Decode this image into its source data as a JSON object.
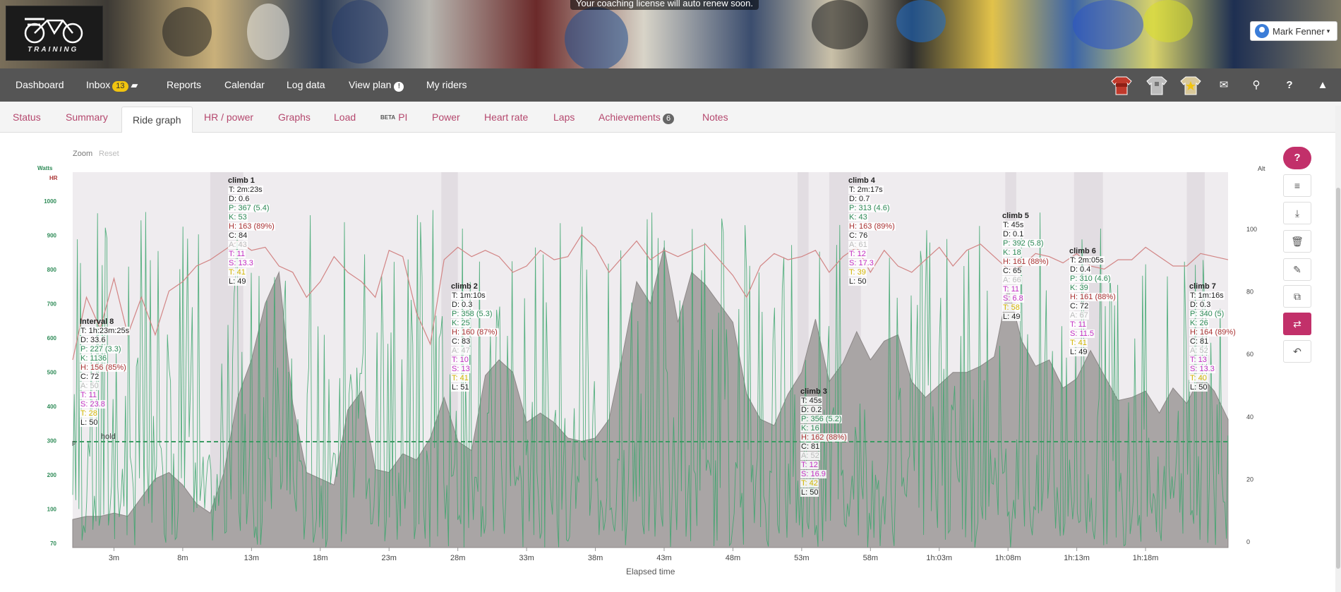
{
  "notice": "Your coaching license will auto renew soon.",
  "logo_text": "TRAINING",
  "user": {
    "name": "Mark Fenner"
  },
  "nav": {
    "dashboard": "Dashboard",
    "inbox": "Inbox",
    "inbox_count": "13",
    "reports": "Reports",
    "calendar": "Calendar",
    "log_data": "Log data",
    "view_plan": "View plan",
    "view_plan_info": "!",
    "my_riders": "My riders"
  },
  "nav_icons": [
    "jersey-red-icon",
    "jersey-grey-icon",
    "jersey-star-icon",
    "mail-icon",
    "search-icon",
    "help-icon",
    "collapse-icon"
  ],
  "tabs": {
    "status": "Status",
    "summary": "Summary",
    "ride_graph": "Ride graph",
    "hr_power": "HR / power",
    "graphs": "Graphs",
    "load": "Load",
    "pi_beta": "BETA",
    "pi": "PI",
    "power": "Power",
    "heart_rate": "Heart rate",
    "laps": "Laps",
    "achievements": "Achievements",
    "achievements_count": "6",
    "notes": "Notes"
  },
  "zoom": {
    "label": "Zoom",
    "reset": "Reset"
  },
  "side_buttons": {
    "help": "?",
    "icons": [
      "menu-icon",
      "download-icon",
      "delete-icon",
      "edit-icon",
      "copy-icon",
      "swap-icon",
      "undo-icon"
    ]
  },
  "chart_data": {
    "type": "line",
    "xlabel": "Elapsed time",
    "x_ticks": [
      "3m",
      "8m",
      "13m",
      "18m",
      "23m",
      "28m",
      "33m",
      "38m",
      "43m",
      "48m",
      "53m",
      "58m",
      "1h:03m",
      "1h:08m",
      "1h:13m",
      "1h:18m"
    ],
    "x_range_min": [
      0,
      84
    ],
    "left_axis": {
      "label_top": "Watts",
      "label_bottom": "HR",
      "ticks": [
        "1000",
        "900",
        "800",
        "700",
        "600",
        "500",
        "400",
        "300",
        "200",
        "100",
        "70"
      ]
    },
    "right_axis": {
      "label": "Alt",
      "ticks": [
        "100",
        "80",
        "60",
        "40",
        "20",
        "0"
      ]
    },
    "hold_line": {
      "label": "hold",
      "value_label": "300",
      "marker": "p"
    },
    "series": [
      {
        "name": "Alt",
        "color": "#a9a5a5",
        "x": [
          0,
          1,
          2,
          3,
          4,
          5,
          6,
          7,
          8,
          9,
          10,
          11,
          12,
          13,
          14,
          15,
          16,
          17,
          18,
          19,
          20,
          21,
          22,
          23,
          24,
          25,
          26,
          27,
          28,
          29,
          30,
          31,
          32,
          33,
          34,
          35,
          36,
          37,
          38,
          39,
          40,
          41,
          42,
          43,
          44,
          45,
          46,
          47,
          48,
          49,
          50,
          51,
          52,
          53,
          54,
          55,
          56,
          57,
          58,
          59,
          60,
          61,
          62,
          63,
          64,
          65,
          66,
          67,
          68,
          69,
          70,
          71,
          72,
          73,
          74,
          75,
          76,
          77,
          78,
          79,
          80,
          81,
          82,
          83,
          84
        ],
        "y": [
          9,
          10,
          10,
          11,
          10,
          16,
          22,
          24,
          20,
          14,
          11,
          24,
          48,
          60,
          78,
          88,
          46,
          24,
          22,
          20,
          44,
          50,
          25,
          24,
          30,
          28,
          35,
          48,
          34,
          31,
          55,
          60,
          56,
          40,
          43,
          40,
          35,
          34,
          35,
          41,
          62,
          85,
          78,
          96,
          72,
          88,
          84,
          78,
          72,
          49,
          41,
          39,
          49,
          56,
          73,
          53,
          59,
          69,
          60,
          66,
          68,
          53,
          48,
          52,
          56,
          56,
          58,
          61,
          83,
          66,
          58,
          60,
          51,
          54,
          63,
          55,
          47,
          48,
          50,
          43,
          51,
          46,
          55,
          50,
          41
        ],
        "range": [
          0,
          120
        ]
      },
      {
        "name": "HR",
        "color": "#d28585",
        "x": [
          0,
          1,
          2,
          3,
          4,
          5,
          6,
          7,
          8,
          9,
          10,
          11,
          12,
          13,
          14,
          15,
          16,
          17,
          18,
          19,
          20,
          21,
          22,
          23,
          24,
          25,
          26,
          27,
          28,
          29,
          30,
          31,
          32,
          33,
          34,
          35,
          36,
          37,
          38,
          39,
          40,
          41,
          42,
          43,
          44,
          45,
          46,
          47,
          48,
          49,
          50,
          51,
          52,
          53,
          54,
          55,
          56,
          57,
          58,
          59,
          60,
          61,
          62,
          63,
          64,
          65,
          66,
          67,
          68,
          69,
          70,
          71,
          72,
          73,
          74,
          75,
          76,
          77,
          78,
          79,
          80,
          81,
          82,
          83,
          84
        ],
        "y": [
          130,
          150,
          140,
          156,
          138,
          150,
          138,
          152,
          155,
          160,
          162,
          165,
          168,
          165,
          166,
          160,
          158,
          150,
          155,
          163,
          158,
          155,
          150,
          165,
          163,
          145,
          135,
          162,
          166,
          163,
          165,
          163,
          158,
          160,
          165,
          162,
          163,
          170,
          166,
          158,
          163,
          168,
          162,
          165,
          163,
          165,
          167,
          162,
          157,
          150,
          160,
          164,
          162,
          163,
          165,
          158,
          163,
          166,
          158,
          165,
          160,
          158,
          162,
          166,
          160,
          165,
          167,
          163,
          159,
          160,
          164,
          163,
          161,
          164,
          160,
          159,
          162,
          162,
          166,
          163,
          160,
          160,
          164,
          163,
          162
        ],
        "range": [
          70,
          190
        ]
      },
      {
        "name": "Watts",
        "color": "#3aa56b",
        "range": [
          70,
          1000
        ]
      }
    ],
    "intervals": [
      {
        "name": "Interval 8",
        "T": "T: 1h:23m:25s",
        "D": "D: 33.6",
        "P": "P: 227 (3.3)",
        "K": "K: 1136",
        "H": "H: 156 (85%)",
        "C": "C: 72",
        "A": "A: 50",
        "T2": "T: 11",
        "S": "S: 23.8",
        "T3": "T: 28",
        "L": "L: 50"
      },
      {
        "name": "climb 1",
        "T": "T: 2m:23s",
        "D": "D: 0.6",
        "P": "P: 367 (5.4)",
        "K": "K: 53",
        "H": "H: 163 (89%)",
        "C": "C: 84",
        "A": "A: 43",
        "T2": "T: 11",
        "S": "S: 13.3",
        "T3": "T: 41",
        "L": "L: 49"
      },
      {
        "name": "climb 2",
        "T": "T: 1m:10s",
        "D": "D: 0.3",
        "P": "P: 358 (5.3)",
        "K": "K: 25",
        "H": "H: 160 (87%)",
        "C": "C: 83",
        "A": "A: 47",
        "T2": "T: 10",
        "S": "S: 13",
        "T3": "T: 41",
        "L": "L: 51"
      },
      {
        "name": "climb 3",
        "T": "T: 45s",
        "D": "D: 0.2",
        "P": "P: 356 (5.2)",
        "K": "K: 16",
        "H": "H: 162 (88%)",
        "C": "C: 81",
        "A": "A: 52",
        "T2": "T: 12",
        "S": "S: 16.9",
        "T3": "T: 42",
        "L": "L: 50"
      },
      {
        "name": "climb 4",
        "T": "T: 2m:17s",
        "D": "D: 0.7",
        "P": "P: 313 (4.6)",
        "K": "K: 43",
        "H": "H: 163 (89%)",
        "C": "C: 76",
        "A": "A: 61",
        "T2": "T: 12",
        "S": "S: 17.3",
        "T3": "T: 39",
        "L": "L: 50"
      },
      {
        "name": "climb 5",
        "T": "T: 45s",
        "D": "D: 0.1",
        "P": "P: 392 (5.8)",
        "K": "K: 18",
        "H": "H: 161 (88%)",
        "C": "C: 65",
        "A": "A: 66",
        "T2": "T: 11",
        "S": "S: 6.8",
        "T3": "T: 58",
        "L": "L: 49"
      },
      {
        "name": "climb 6",
        "T": "T: 2m:05s",
        "D": "D: 0.4",
        "P": "P: 310 (4.6)",
        "K": "K: 39",
        "H": "H: 161 (88%)",
        "C": "C: 72",
        "A": "A: 67",
        "T2": "T: 11",
        "S": "S: 11.5",
        "T3": "T: 41",
        "L": "L: 49"
      },
      {
        "name": "climb 7",
        "T": "T: 1m:16s",
        "D": "D: 0.3",
        "P": "P: 340 (5)",
        "K": "K: 26",
        "H": "H: 164 (89%)",
        "C": "C: 81",
        "A": "A: 52",
        "T2": "T: 13",
        "S": "S: 13.3",
        "T3": "T: 40",
        "L": "L: 50"
      }
    ],
    "interval_minutes": [
      [
        0,
        84
      ],
      [
        10,
        12.4
      ],
      [
        26.8,
        28
      ],
      [
        52.7,
        53.5
      ],
      [
        55,
        57.3
      ],
      [
        67.8,
        68.6
      ],
      [
        72.8,
        74.9
      ],
      [
        81,
        82.3
      ]
    ],
    "colors": {
      "plot_bg": "#efecef",
      "highlight": "#e2dde2",
      "hold": "#3b9a62"
    }
  }
}
